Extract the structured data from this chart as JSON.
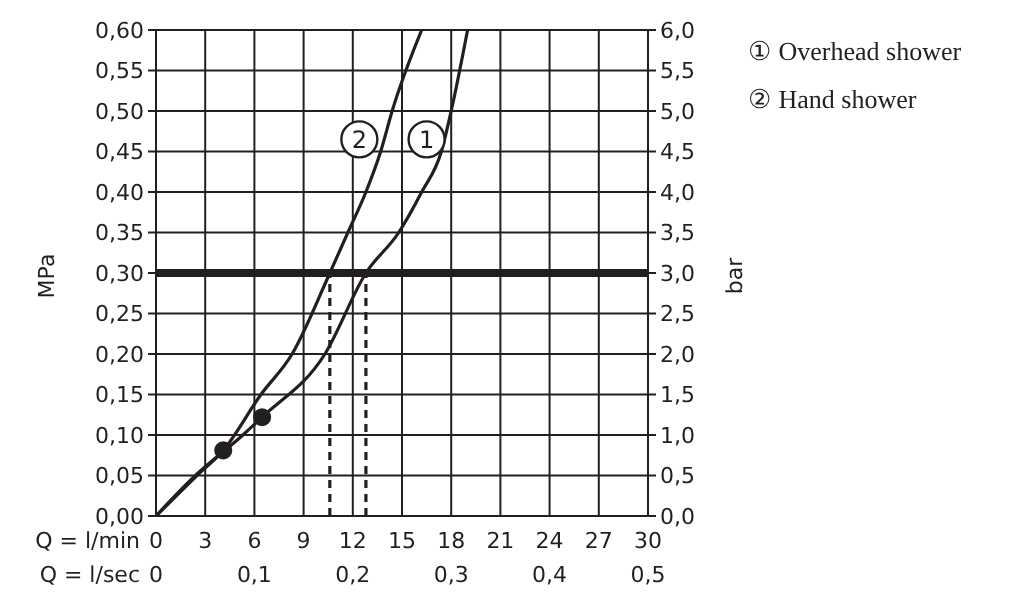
{
  "chart_data": {
    "type": "line",
    "xlabel": "Q = l/min",
    "x2label": "Q = l/sec",
    "ylabel": "MPa",
    "y2label": "bar",
    "xlim": [
      0,
      30
    ],
    "xticks": [
      0,
      3,
      6,
      9,
      12,
      15,
      18,
      21,
      24,
      27,
      30
    ],
    "x2lim": [
      0,
      0.5
    ],
    "x2ticks": [
      0,
      {
        "value": 0.1,
        "label": "0,1"
      },
      {
        "value": 0.2,
        "label": "0,2"
      },
      {
        "value": 0.3,
        "label": "0,3"
      },
      {
        "value": 0.4,
        "label": "0,4"
      },
      {
        "value": 0.5,
        "label": "0,5"
      }
    ],
    "ylim": [
      0,
      0.6
    ],
    "yticks": [
      {
        "value": 0,
        "label": "0,00"
      },
      {
        "value": 0.05,
        "label": "0,05"
      },
      {
        "value": 0.1,
        "label": "0,10"
      },
      {
        "value": 0.15,
        "label": "0,15"
      },
      {
        "value": 0.2,
        "label": "0,20"
      },
      {
        "value": 0.25,
        "label": "0,25"
      },
      {
        "value": 0.3,
        "label": "0,30"
      },
      {
        "value": 0.35,
        "label": "0,35"
      },
      {
        "value": 0.4,
        "label": "0,40"
      },
      {
        "value": 0.45,
        "label": "0,45"
      },
      {
        "value": 0.5,
        "label": "0,50"
      },
      {
        "value": 0.55,
        "label": "0,55"
      },
      {
        "value": 0.6,
        "label": "0,60"
      }
    ],
    "y2lim": [
      0,
      6
    ],
    "y2ticks": [
      {
        "value": 0,
        "label": "0,0"
      },
      {
        "value": 0.5,
        "label": "0,5"
      },
      {
        "value": 1,
        "label": "1,0"
      },
      {
        "value": 1.5,
        "label": "1,5"
      },
      {
        "value": 2,
        "label": "2,0"
      },
      {
        "value": 2.5,
        "label": "2,5"
      },
      {
        "value": 3,
        "label": "3,0"
      },
      {
        "value": 3.5,
        "label": "3,5"
      },
      {
        "value": 4,
        "label": "4,0"
      },
      {
        "value": 4.5,
        "label": "4,5"
      },
      {
        "value": 5,
        "label": "5,0"
      },
      {
        "value": 5.5,
        "label": "5,5"
      },
      {
        "value": 6,
        "label": "6,0"
      }
    ],
    "grid": true,
    "legend": "top right",
    "marker": "none",
    "line_style": "solid",
    "ref_lines": [
      {
        "axis": "y",
        "value": 0.3,
        "color": "#231f20"
      }
    ],
    "annotations": [
      {
        "text": "1",
        "x": 16.5,
        "y": 0.465
      },
      {
        "text": "2",
        "x": 12.4,
        "y": 0.465
      }
    ],
    "series": [
      {
        "name": "① Overhead shower",
        "color": "#231f20",
        "x": [
          0,
          2.4,
          5.3,
          6.47,
          10.3,
          12.8,
          14.8,
          16.2,
          17.4,
          18.0,
          19.0
        ],
        "values": [
          0,
          0.05,
          0.1,
          0.122,
          0.2,
          0.3,
          0.35,
          0.4,
          0.45,
          0.5,
          0.6
        ]
      },
      {
        "name": "② Hand shower",
        "color": "#231f20",
        "x": [
          0,
          2.5,
          4.1,
          6.4,
          8.3,
          10.6,
          11.7,
          12.8,
          13.7,
          14.4,
          16.2
        ],
        "values": [
          0,
          0.05,
          0.081,
          0.15,
          0.2,
          0.3,
          0.35,
          0.4,
          0.45,
          0.5,
          0.6
        ]
      },
      {
        "type": "scatter",
        "marker": "circle",
        "color": "#231f20",
        "x": [
          4.1,
          6.47
        ],
        "values": [
          0.081,
          0.122
        ]
      },
      {
        "color": "#231f20",
        "line_style": "dashed",
        "x": [
          10.6,
          10.6
        ],
        "values": [
          0,
          0.3
        ]
      },
      {
        "color": "#231f20",
        "line_style": "dashed",
        "x": [
          12.8,
          12.8
        ],
        "values": [
          0,
          0.3
        ]
      }
    ]
  }
}
